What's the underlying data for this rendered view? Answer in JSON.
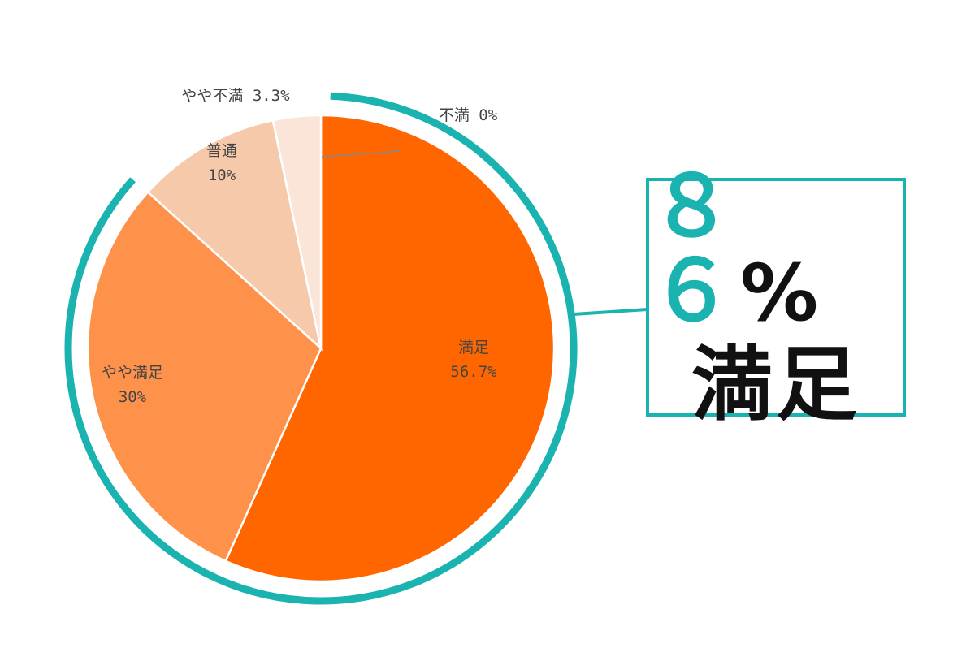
{
  "chart_data": {
    "type": "pie",
    "start": "top",
    "direction": "clockwise",
    "slices": [
      {
        "label": "満足",
        "value": 56.7,
        "value_label": "56.7%",
        "color": "#ff6600"
      },
      {
        "label": "やや満足",
        "value": 30,
        "value_label": "30%",
        "color": "#ff924a"
      },
      {
        "label": "普通",
        "value": 10,
        "value_label": "10%",
        "color": "#f7c9ab"
      },
      {
        "label": "やや不満",
        "value": 3.3,
        "value_label": "3.3%",
        "color": "#fbe4d8"
      },
      {
        "label": "不満",
        "value": 0,
        "value_label": "0%",
        "color": "#ffffff"
      }
    ]
  },
  "highlight": {
    "number": "８６",
    "percent_sign": "%",
    "word": "満足",
    "accent_color": "#1ab3b0"
  }
}
